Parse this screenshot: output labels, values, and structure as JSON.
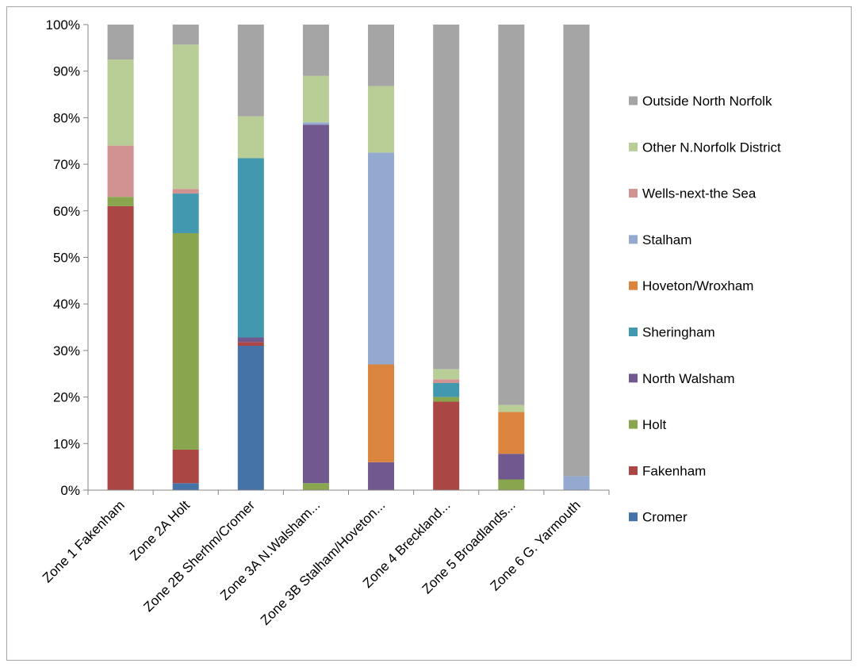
{
  "chart_data": {
    "type": "bar",
    "stacked": true,
    "percent_stacked": true,
    "categories": [
      "Zone 1 Fakenham",
      "Zone 2A Holt",
      "Zone 2B Sherhm/Cromer",
      "Zone 3A N.Walsham...",
      "Zone 3B Stalham/Hoveton...",
      "Zone 4 Breckland...",
      "Zone 5 Broadlands...",
      "Zone 6 G. Yarmouth"
    ],
    "series": [
      {
        "name": "Cromer",
        "color": "#4572a7",
        "values": [
          0,
          1.5,
          31,
          0,
          0,
          0,
          0,
          0
        ]
      },
      {
        "name": "Fakenham",
        "color": "#aa4643",
        "values": [
          61,
          7.2,
          0.8,
          0,
          0,
          19,
          0,
          0
        ]
      },
      {
        "name": "Holt",
        "color": "#89a54e",
        "values": [
          2,
          46.5,
          0,
          1.5,
          0,
          1,
          2.3,
          0
        ]
      },
      {
        "name": "North Walsham",
        "color": "#71588f",
        "values": [
          0,
          0,
          1,
          77,
          6,
          0,
          5.5,
          0
        ]
      },
      {
        "name": "Sheringham",
        "color": "#4198af",
        "values": [
          0,
          8.5,
          38.5,
          0,
          0,
          3,
          0,
          0
        ]
      },
      {
        "name": "Hoveton/Wroxham",
        "color": "#db843d",
        "values": [
          0,
          0,
          0,
          0,
          21,
          0,
          9,
          0
        ]
      },
      {
        "name": "Stalham",
        "color": "#93a9cf",
        "values": [
          0,
          0,
          0,
          0.5,
          45.5,
          0,
          0,
          3
        ]
      },
      {
        "name": "Wells-next-the Sea",
        "color": "#d19392",
        "values": [
          11,
          1,
          0,
          0,
          0,
          0.8,
          0,
          0
        ]
      },
      {
        "name": "Other N.Norfolk District",
        "color": "#b9cd96",
        "values": [
          18.5,
          31,
          9,
          10,
          14.3,
          2.2,
          1.5,
          0
        ]
      },
      {
        "name": "Outside North Norfolk",
        "color": "#a5a5a5",
        "values": [
          7.5,
          4.3,
          19.7,
          11,
          13.2,
          74,
          81.7,
          97
        ]
      }
    ],
    "y_ticks": [
      "0%",
      "10%",
      "20%",
      "30%",
      "40%",
      "50%",
      "60%",
      "70%",
      "80%",
      "90%",
      "100%"
    ],
    "ylim": [
      0,
      100
    ],
    "grid": false,
    "legend_position": "right",
    "title": "",
    "xlabel": "",
    "ylabel": ""
  }
}
